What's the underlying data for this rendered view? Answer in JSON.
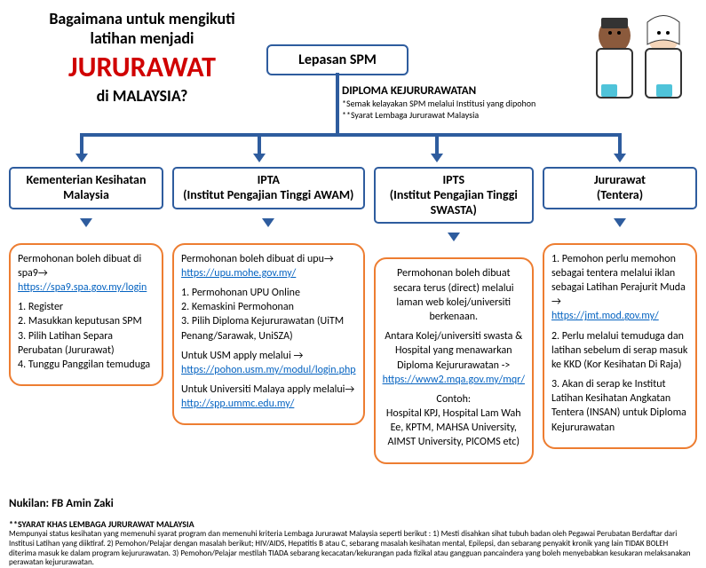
{
  "title": {
    "line1": "Bagaimana untuk mengikuti",
    "line2": "latihan menjadi",
    "big": "JURURAWAT",
    "line3": "di MALAYSIA?"
  },
  "topnode": "Lepasan SPM",
  "diploma": {
    "heading": "DIPLOMA KEJURURAWATAN",
    "sub1": "*Semak kelayakan SPM melalui Institusi yang dipohon",
    "sub2": "**Syarat Lembaga Jururawat Malaysia"
  },
  "paths": [
    {
      "head": "Kementerian Kesihatan Malaysia",
      "body": "<p>Permohonan boleh dibuat di spa9→<br><a href='#'>https://spa9.spa.gov.my/login</a></p><p>1. Register<br>2. Masukkan keputusan SPM<br>3. Pilih Latihan Separa Perubatan (Jururawat)<br>4. Tunggu Panggilan temuduga</p>"
    },
    {
      "head": "IPTA<br>(Institut Pengajian Tinggi AWAM)",
      "body": "<p>Permohonan boleh dibuat di upu→ <a href='#'>https://upu.mohe.gov.my/</a></p><p>1. Permohonan UPU Online<br>2. Kemaskini Permohonan<br>3. Pilih Diploma Kejururawatan (UiTM Penang/Sarawak, UniSZA)</p><p>Untuk USM apply melalui →<br><a href='#'>https://pohon.usm.my/modul/login.php</a></p><p>Untuk Universiti Malaya apply melalui→<br><a href='#'>http://spp.ummc.edu.my/</a></p>"
    },
    {
      "head": "IPTS<br>(Institut Pengajian Tinggi SWASTA)",
      "body": "<p>Permohonan boleh dibuat secara terus (direct) melalui laman web kolej/universiti berkenaan.</p><p>Antara Kolej/universiti swasta &amp; Hospital yang menawarkan Diploma Kejururawatan -&gt;<br><a href='#'>https://www2.mqa.gov.my/mqr/</a></p><p>Contoh:<br>Hospital KPJ, Hospital Lam Wah Ee, KPTM, MAHSA University, AIMST University, PICOMS etc)</p>"
    },
    {
      "head": "Jururawat<br>(Tentera)",
      "body": "<p>1. Pemohon perlu memohon sebagai tentera melalui iklan sebagai Latihan Perajurit Muda →<br><a href='#'>https://jmt.mod.gov.my/</a></p><p>2.  Perlu melalui temuduga dan latihan sebelum di serap masuk ke KKD (Kor Kesihatan Di Raja)</p><p>3. Akan di serap ke Institut Latihan Kesihatan Angkatan Tentera (INSAN) untuk Diploma Kejururawatan</p>"
    }
  ],
  "source": "Nukilan: FB Amin Zaki",
  "footer": {
    "heading": "**SYARAT KHAS LEMBAGA JURURAWAT MALAYSIA",
    "text": "Mempunyai status kesihatan yang memenuhi syarat program dan memenuhi kriteria Lembaga Jururawat Malaysia seperti berikut : 1) Mesti disahkan sihat tubuh badan oleh Pegawai Perubatan Berdaftar dari Institusi Latihan yang diiktiraf. 2) Pemohon/Pelajar dengan masalah berikut; HIV/AIDS, Hepatitis B atau C, sebarang masalah kesihatan mental, Epilepsi, dan sebarang penyakit kronik yang lain TIDAK BOLEH diterima masuk ke dalam program kejururawatan. 3) Pemohon/Pelajar mestilah TIADA sebarang kecacatan/kekurangan pada fizikal atau gangguan pancaindera yang boleh menyebabkan kesukaran melaksanakan perawatan kejururawatan."
  },
  "colors": {
    "connector": "#2e5c9e",
    "orange": "#ed7d31",
    "red": "#d00000",
    "link": "#0563c1"
  }
}
